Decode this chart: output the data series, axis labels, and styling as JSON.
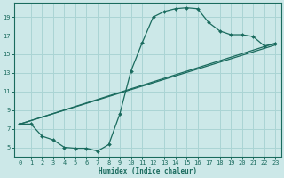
{
  "xlabel": "Humidex (Indice chaleur)",
  "bg_color": "#cce8e8",
  "grid_color": "#aad4d4",
  "line_color": "#1a6b5e",
  "marker_color": "#1a6b5e",
  "xlim": [
    -0.5,
    23.5
  ],
  "ylim": [
    4.0,
    20.5
  ],
  "xticks": [
    0,
    1,
    2,
    3,
    4,
    5,
    6,
    7,
    8,
    9,
    10,
    11,
    12,
    13,
    14,
    15,
    16,
    17,
    18,
    19,
    20,
    21,
    22,
    23
  ],
  "yticks": [
    5,
    7,
    9,
    11,
    13,
    15,
    17,
    19
  ],
  "line1_x": [
    0,
    1,
    2,
    3,
    4,
    5,
    6,
    7,
    8,
    9,
    10,
    11,
    12,
    13,
    14,
    15,
    16,
    17,
    18,
    19,
    20,
    21,
    22,
    23
  ],
  "line1_y": [
    7.5,
    7.5,
    6.2,
    5.8,
    5.0,
    4.9,
    4.9,
    4.6,
    5.3,
    8.6,
    13.2,
    16.2,
    19.0,
    19.6,
    19.9,
    20.0,
    19.9,
    18.4,
    17.5,
    17.1,
    17.1,
    16.9,
    15.9,
    16.1
  ],
  "line2_x": [
    0,
    23
  ],
  "line2_y": [
    7.5,
    16.2
  ],
  "line3_x": [
    0,
    23
  ],
  "line3_y": [
    7.5,
    16.0
  ],
  "label_fontsize": 5.5,
  "tick_fontsize": 5
}
